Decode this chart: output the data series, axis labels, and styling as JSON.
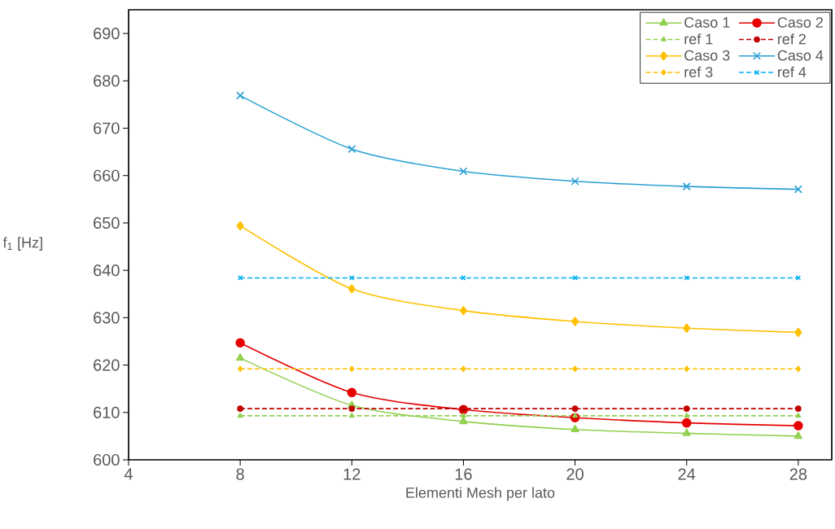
{
  "chart_data": {
    "type": "line",
    "xlabel": "Elementi Mesh per lato",
    "ylabel": "f$_{1}$ [Hz]",
    "x": [
      8,
      12,
      16,
      20,
      24,
      28
    ],
    "xlim": [
      4,
      29.2
    ],
    "xticks": [
      4,
      8,
      12,
      16,
      20,
      24,
      28
    ],
    "ylim": [
      600,
      695
    ],
    "yticks": [
      600,
      610,
      620,
      630,
      640,
      650,
      660,
      670,
      680,
      690
    ],
    "grid": false,
    "legend": "top right",
    "series": [
      {
        "name": "Caso 1",
        "color": "#92d050",
        "marker": "triangle",
        "line_style": "solid",
        "values": [
          621.5,
          611.5,
          608.1,
          606.4,
          605.6,
          605.0
        ]
      },
      {
        "name": "Caso 2",
        "color": "#e60000",
        "marker": "circle",
        "line_style": "solid",
        "values": [
          624.7,
          614.2,
          610.6,
          608.9,
          607.8,
          607.2
        ]
      },
      {
        "name": "ref 1",
        "color": "#92d050",
        "marker": "triangle",
        "line_style": "dashed",
        "values": [
          609.3,
          609.3,
          609.3,
          609.3,
          609.3,
          609.3
        ]
      },
      {
        "name": "ref 2",
        "color": "#c00000",
        "marker": "circle",
        "line_style": "dashed",
        "values": [
          610.8,
          610.8,
          610.8,
          610.8,
          610.8,
          610.8
        ]
      },
      {
        "name": "Caso 3",
        "color": "#ffc000",
        "marker": "diamond",
        "line_style": "solid",
        "values": [
          649.4,
          636.1,
          631.5,
          629.2,
          627.8,
          626.9
        ]
      },
      {
        "name": "Caso 4",
        "color": "#2ba0d4",
        "marker": "cross",
        "line_style": "solid",
        "values": [
          676.9,
          665.6,
          660.9,
          658.8,
          657.7,
          657.1
        ]
      },
      {
        "name": "ref 3",
        "color": "#ffc000",
        "marker": "diamond",
        "line_style": "dashed",
        "values": [
          619.2,
          619.2,
          619.2,
          619.2,
          619.2,
          619.2
        ]
      },
      {
        "name": "ref 4",
        "color": "#00b0f0",
        "marker": "cross",
        "line_style": "dashed",
        "values": [
          638.4,
          638.4,
          638.4,
          638.4,
          638.4,
          638.4
        ]
      }
    ]
  }
}
